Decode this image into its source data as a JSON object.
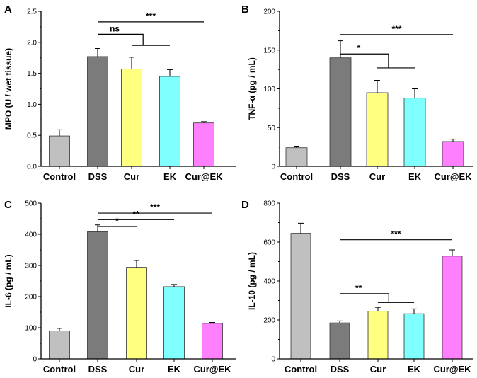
{
  "colors": {
    "Control": "#c0c0c0",
    "DSS": "#7b7b7b",
    "Cur": "#ffff80",
    "EK": "#80ffff",
    "Cur@EK": "#ff80ff"
  },
  "chart_data": [
    {
      "panel": "A",
      "type": "bar",
      "ylabel": "MPO (U / wet tissue)",
      "categories": [
        "Control",
        "DSS",
        "Cur",
        "EK",
        "Cur@EK"
      ],
      "values": [
        0.49,
        1.77,
        1.57,
        1.45,
        0.7
      ],
      "errors": [
        0.1,
        0.13,
        0.19,
        0.11,
        0.02
      ],
      "ylim": [
        0,
        2.5
      ],
      "yticks": [
        "0.0",
        "0.5",
        "1.0",
        "1.5",
        "2.0",
        "2.5"
      ],
      "significance": [
        {
          "label": "***",
          "from": 1,
          "to": 4,
          "value": 2.33
        },
        {
          "label": "ns",
          "from": 1,
          "to": 2.3,
          "value": 2.13,
          "joins": {
            "from": 2,
            "to": 3,
            "value": 1.95
          }
        }
      ]
    },
    {
      "panel": "B",
      "type": "bar",
      "ylabel": "TNF-α (pg / mL)",
      "categories": [
        "Control",
        "DSS",
        "Cur",
        "EK",
        "Cur@EK"
      ],
      "values": [
        24,
        140,
        95,
        88,
        32
      ],
      "errors": [
        2,
        22,
        16,
        12,
        3
      ],
      "ylim": [
        0,
        200
      ],
      "yticks": [
        "0",
        "50",
        "100",
        "150",
        "200"
      ],
      "significance": [
        {
          "label": "***",
          "from": 1,
          "to": 4,
          "value": 170
        },
        {
          "label": "*",
          "from": 1,
          "to": 2.3,
          "value": 145,
          "joins": {
            "from": 2,
            "to": 3,
            "value": 127
          }
        }
      ]
    },
    {
      "panel": "C",
      "type": "bar",
      "ylabel": "IL-6 (pg / mL)",
      "categories": [
        "Control",
        "DSS",
        "Cur",
        "EK",
        "Cur@EK"
      ],
      "values": [
        90,
        408,
        294,
        232,
        114
      ],
      "errors": [
        8,
        22,
        22,
        7,
        3
      ],
      "ylim": [
        0,
        500
      ],
      "yticks": [
        "0",
        "100",
        "200",
        "300",
        "400",
        "500"
      ],
      "significance": [
        {
          "label": "***",
          "from": 1,
          "to": 4,
          "value": 468
        },
        {
          "label": "**",
          "from": 1,
          "to": 3,
          "value": 447
        },
        {
          "label": "*",
          "from": 1,
          "to": 2,
          "value": 425
        }
      ]
    },
    {
      "panel": "D",
      "type": "bar",
      "ylabel": "IL-10 (pg / mL)",
      "categories": [
        "Control",
        "DSS",
        "Cur",
        "EK",
        "Cur@EK"
      ],
      "values": [
        645,
        185,
        245,
        232,
        528
      ],
      "errors": [
        52,
        10,
        20,
        25,
        32
      ],
      "ylim": [
        0,
        800
      ],
      "yticks": [
        "0",
        "200",
        "400",
        "600",
        "800"
      ],
      "significance": [
        {
          "label": "***",
          "from": 1,
          "to": 4,
          "value": 612
        },
        {
          "label": "**",
          "from": 1,
          "to": 2.3,
          "value": 335,
          "joins": {
            "from": 2,
            "to": 3,
            "value": 290
          }
        }
      ]
    }
  ]
}
